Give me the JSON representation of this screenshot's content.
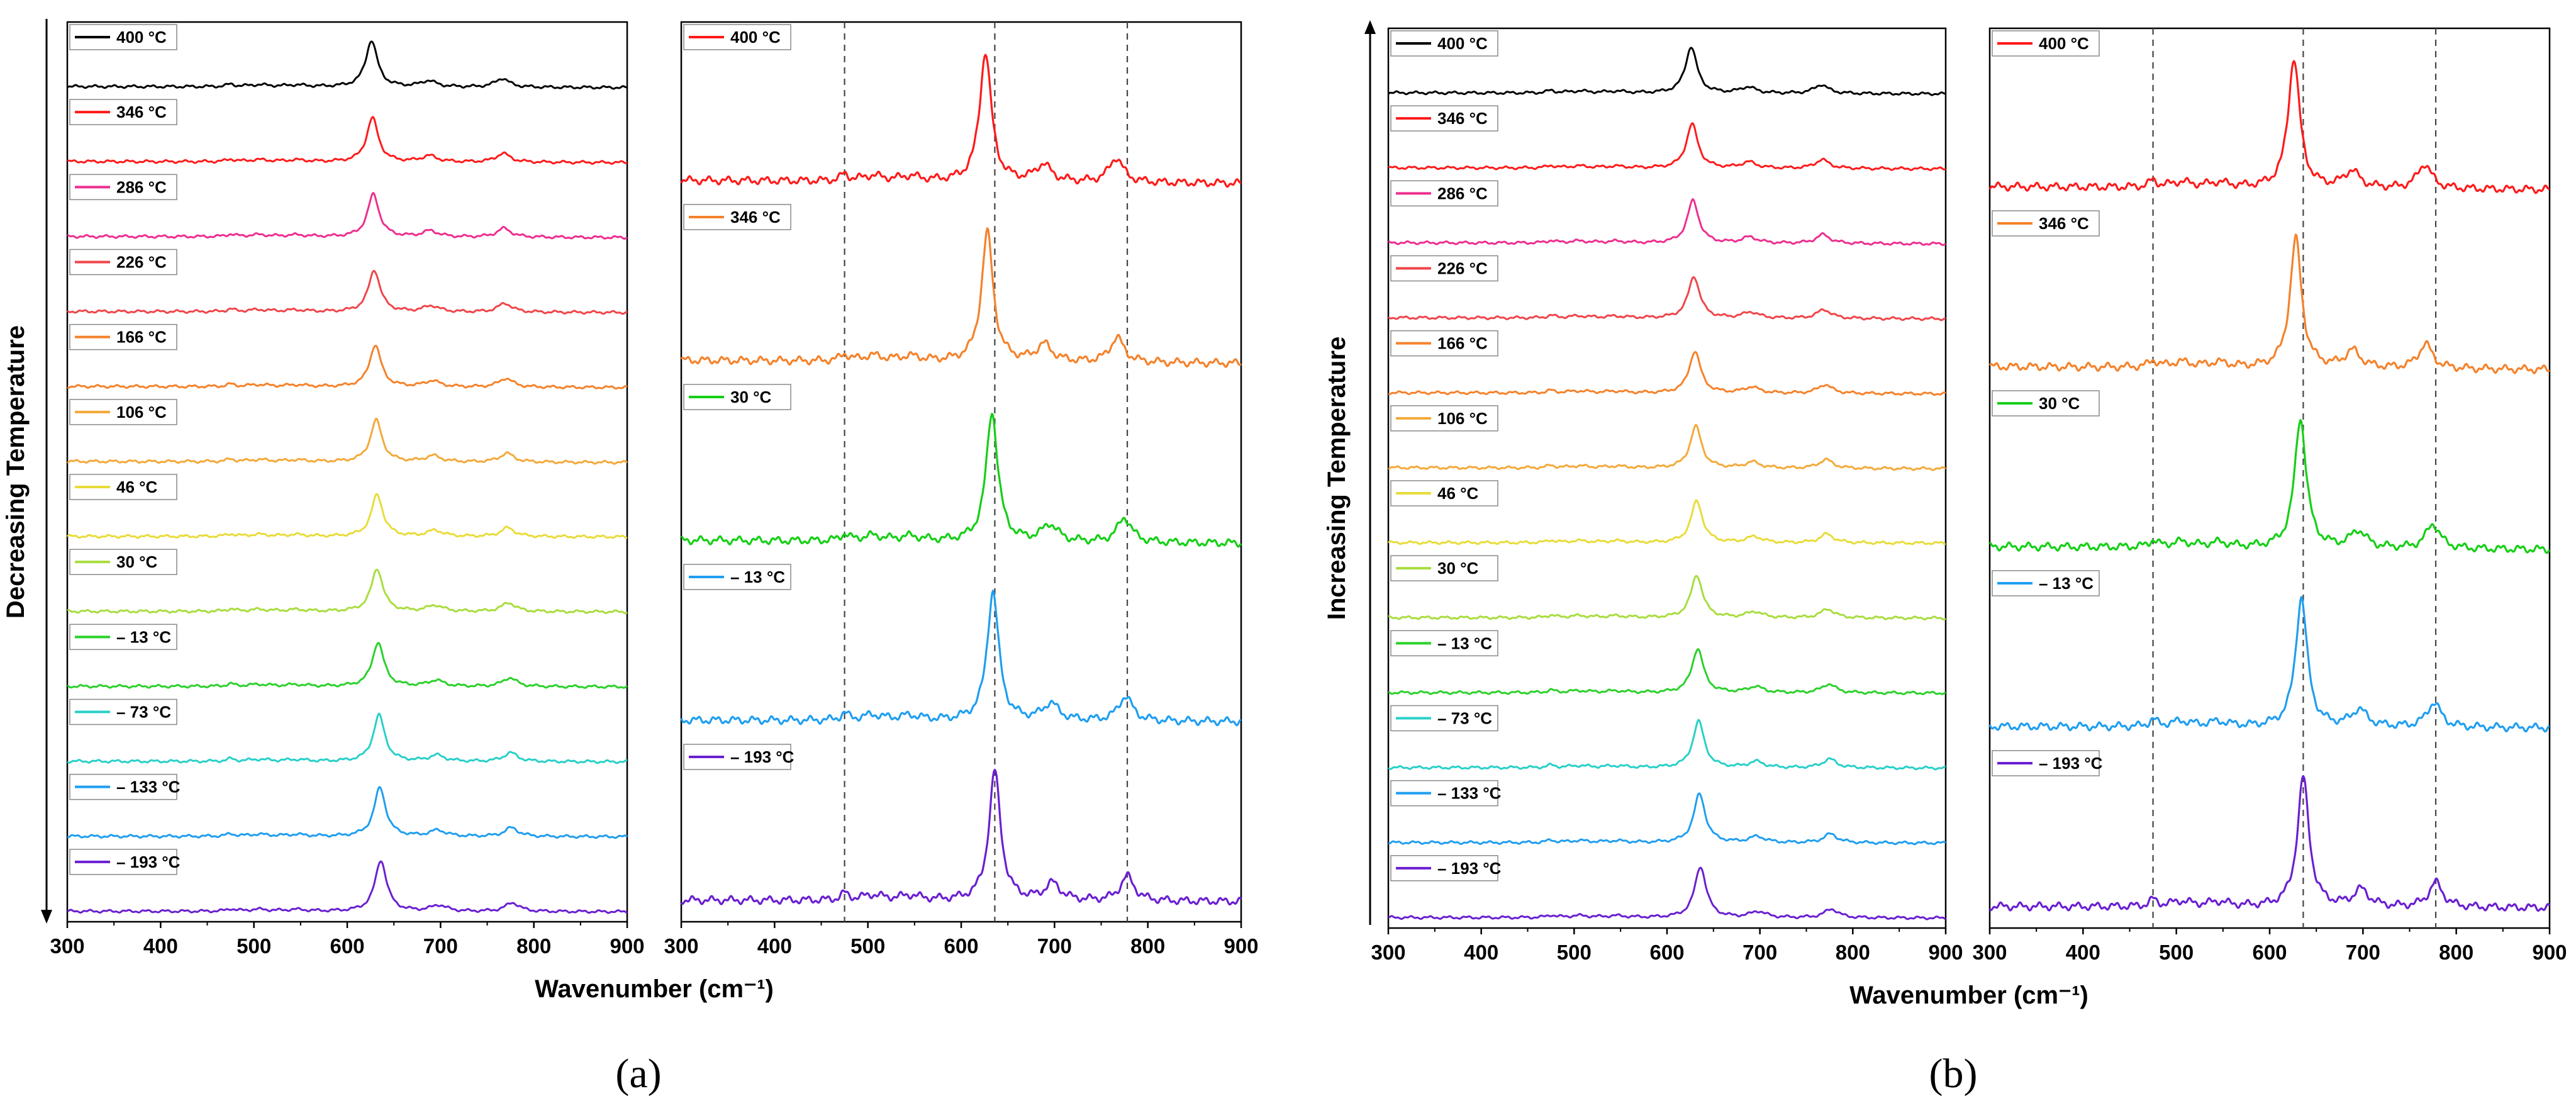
{
  "figure": {
    "panel_a_label": "(a)",
    "panel_b_label": "(b)"
  },
  "colors": {
    "400 °C": "#000000",
    "346 °C": "#ff1a1a",
    "286 °C": "#ee2e8f",
    "226 °C": "#f0454a",
    "166 °C": "#f5822b",
    "106 °C": "#f4a93a",
    "46 °C": "#e8dc3a",
    "30 °C": "#a8dd3e",
    "– 13 °C": "#2bd12b",
    "– 73 °C": "#28d0c8",
    "– 133 °C": "#1f9ef0",
    "– 193 °C": "#6a1fd1",
    "400 °C (zoom)": "#ff1a1a",
    "346 °C (zoom)": "#f5822b",
    "30 °C (zoom)": "#15cf15",
    "– 13 °C (zoom)": "#1f9ef0",
    "– 193 °C (zoom)": "#6a1fd1"
  },
  "chart_data": [
    {
      "id": "a-left",
      "type": "line",
      "title": "",
      "ylabel": "Decreasing Temperature",
      "xlabel": "Wavenumber (cm⁻¹)",
      "xlim": [
        300,
        900
      ],
      "xticks": [
        "300",
        "400",
        "500",
        "600",
        "700",
        "800",
        "900"
      ],
      "series": [
        {
          "name": "400 °C",
          "peaks": [
            626,
            687,
            766
          ],
          "intensity": 1.0
        },
        {
          "name": "346 °C",
          "peaks": [
            627,
            688,
            767
          ],
          "intensity": 0.95
        },
        {
          "name": "286 °C",
          "peaks": [
            628,
            689,
            768
          ],
          "intensity": 0.92
        },
        {
          "name": "226 °C",
          "peaks": [
            629,
            690,
            769
          ],
          "intensity": 0.9
        },
        {
          "name": "166 °C",
          "peaks": [
            630,
            691,
            770
          ],
          "intensity": 0.9
        },
        {
          "name": "106 °C",
          "peaks": [
            631,
            692,
            771
          ],
          "intensity": 0.9
        },
        {
          "name": "46 °C",
          "peaks": [
            632,
            694,
            772
          ],
          "intensity": 0.9
        },
        {
          "name": "30 °C",
          "peaks": [
            632,
            694,
            773
          ],
          "intensity": 0.92
        },
        {
          "name": "– 13 °C",
          "peaks": [
            633,
            695,
            774
          ],
          "intensity": 0.95
        },
        {
          "name": "– 73 °C",
          "peaks": [
            634,
            696,
            775
          ],
          "intensity": 1.0
        },
        {
          "name": "– 133 °C",
          "peaks": [
            635,
            697,
            776
          ],
          "intensity": 1.05
        },
        {
          "name": "– 193 °C",
          "peaks": [
            636,
            698,
            777
          ],
          "intensity": 1.1
        }
      ]
    },
    {
      "id": "a-right",
      "type": "line",
      "title": "",
      "xlabel": "Wavenumber (cm⁻¹)",
      "xlim": [
        300,
        900
      ],
      "xticks": [
        "300",
        "400",
        "500",
        "600",
        "700",
        "800",
        "900"
      ],
      "reference_lines": [
        475,
        636,
        778
      ],
      "series": [
        {
          "name": "400 °C",
          "peaks": [
            626,
            688,
            766
          ],
          "intensity": 1.0
        },
        {
          "name": "346 °C",
          "peaks": [
            628,
            689,
            767
          ],
          "intensity": 1.0
        },
        {
          "name": "30 °C",
          "peaks": [
            633,
            695,
            775
          ],
          "intensity": 1.0
        },
        {
          "name": "– 13 °C",
          "peaks": [
            634,
            696,
            776
          ],
          "intensity": 1.0
        },
        {
          "name": "– 193 °C",
          "peaks": [
            636,
            698,
            778
          ],
          "intensity": 1.0
        }
      ]
    },
    {
      "id": "b-left",
      "type": "line",
      "title": "",
      "ylabel": "Increasing Temperature",
      "xlabel": "Wavenumber (cm⁻¹)",
      "xlim": [
        300,
        900
      ],
      "xticks": [
        "300",
        "400",
        "500",
        "600",
        "700",
        "800",
        "900"
      ],
      "series": [
        {
          "name": "400 °C",
          "peaks": [
            626,
            687,
            766
          ],
          "intensity": 1.0
        },
        {
          "name": "346 °C",
          "peaks": [
            627,
            688,
            767
          ],
          "intensity": 0.95
        },
        {
          "name": "286 °C",
          "peaks": [
            628,
            689,
            768
          ],
          "intensity": 0.92
        },
        {
          "name": "226 °C",
          "peaks": [
            629,
            690,
            769
          ],
          "intensity": 0.9
        },
        {
          "name": "166 °C",
          "peaks": [
            630,
            691,
            770
          ],
          "intensity": 0.9
        },
        {
          "name": "106 °C",
          "peaks": [
            631,
            692,
            771
          ],
          "intensity": 0.9
        },
        {
          "name": "46 °C",
          "peaks": [
            632,
            694,
            772
          ],
          "intensity": 0.9
        },
        {
          "name": "30 °C",
          "peaks": [
            632,
            694,
            773
          ],
          "intensity": 0.92
        },
        {
          "name": "– 13 °C",
          "peaks": [
            633,
            695,
            774
          ],
          "intensity": 0.95
        },
        {
          "name": "– 73 °C",
          "peaks": [
            634,
            696,
            775
          ],
          "intensity": 1.0
        },
        {
          "name": "– 133 °C",
          "peaks": [
            635,
            697,
            776
          ],
          "intensity": 1.05
        },
        {
          "name": "– 193 °C",
          "peaks": [
            636,
            698,
            777
          ],
          "intensity": 1.1
        }
      ]
    },
    {
      "id": "b-right",
      "type": "line",
      "title": "",
      "xlabel": "Wavenumber (cm⁻¹)",
      "xlim": [
        300,
        900
      ],
      "xticks": [
        "300",
        "400",
        "500",
        "600",
        "700",
        "800",
        "900"
      ],
      "reference_lines": [
        475,
        636,
        778
      ],
      "series": [
        {
          "name": "400 °C",
          "peaks": [
            626,
            688,
            766
          ],
          "intensity": 1.0
        },
        {
          "name": "346 °C",
          "peaks": [
            628,
            689,
            767
          ],
          "intensity": 1.0
        },
        {
          "name": "30 °C",
          "peaks": [
            633,
            695,
            775
          ],
          "intensity": 1.0
        },
        {
          "name": "– 13 °C",
          "peaks": [
            634,
            696,
            776
          ],
          "intensity": 1.0
        },
        {
          "name": "– 193 °C",
          "peaks": [
            636,
            698,
            778
          ],
          "intensity": 1.0
        }
      ]
    }
  ]
}
